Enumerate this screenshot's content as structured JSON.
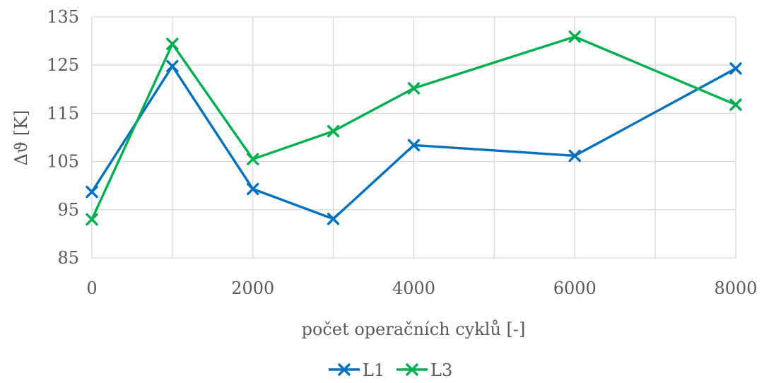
{
  "chart_data": {
    "type": "line",
    "title": "",
    "xlabel": "počet operačních cyklů [-]",
    "ylabel": "Δϑ [K]",
    "xlim": [
      0,
      8000
    ],
    "ylim": [
      85,
      135
    ],
    "x_ticks": [
      0,
      2000,
      4000,
      6000,
      8000
    ],
    "y_ticks": [
      85,
      95,
      105,
      115,
      125,
      135
    ],
    "x_ticks_labels": [
      "0",
      "2000",
      "4000",
      "6000",
      "8000"
    ],
    "y_ticks_labels": [
      "85",
      "95",
      "105",
      "115",
      "125",
      "135"
    ],
    "grid": true,
    "legend_position": "bottom",
    "series": [
      {
        "name": "L1",
        "color": "#0070c0",
        "marker": "x",
        "x": [
          0,
          1000,
          2000,
          3000,
          4000,
          6000,
          8000
        ],
        "values": [
          98.7,
          124.8,
          99.3,
          93.1,
          108.4,
          106.2,
          124.3
        ]
      },
      {
        "name": "L3",
        "color": "#00b050",
        "marker": "x",
        "x": [
          0,
          1000,
          2000,
          3000,
          4000,
          6000,
          8000
        ],
        "values": [
          93.0,
          129.4,
          105.5,
          111.3,
          120.2,
          130.9,
          116.8
        ]
      }
    ]
  }
}
